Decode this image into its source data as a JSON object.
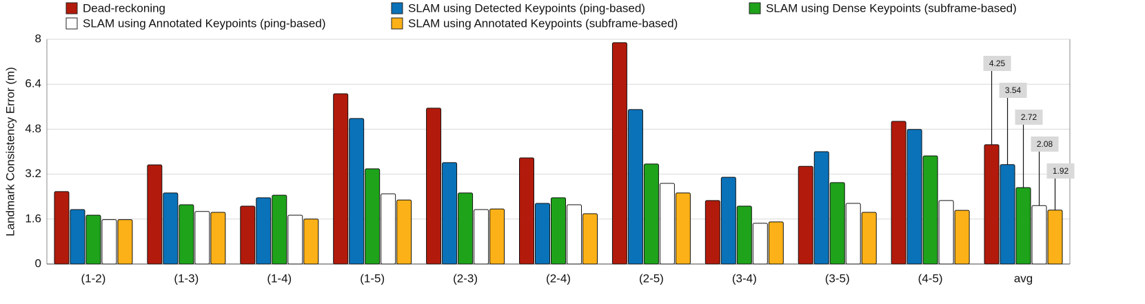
{
  "chart_data": {
    "type": "bar",
    "y_label": "Landmark Consistency Error (m)",
    "categories": [
      "(1-2)",
      "(1-3)",
      "(1-4)",
      "(1-5)",
      "(2-3)",
      "(2-4)",
      "(2-5)",
      "(3-4)",
      "(3-5)",
      "(4-5)",
      "avg"
    ],
    "series": [
      {
        "name": "Dead-reckoning",
        "color": "#b21a0b",
        "values": [
          2.58,
          3.53,
          2.06,
          6.06,
          5.55,
          3.78,
          7.88,
          2.26,
          3.48,
          5.08,
          4.25
        ]
      },
      {
        "name": "SLAM using Detected Keypoints (ping-based)",
        "color": "#0a72b9",
        "values": [
          1.94,
          2.53,
          2.36,
          5.18,
          3.61,
          2.16,
          5.5,
          3.09,
          4.0,
          4.79,
          3.54
        ]
      },
      {
        "name": "SLAM using Dense Keypoints (subframe-based)",
        "color": "#1ea31a",
        "values": [
          1.74,
          2.11,
          2.45,
          3.39,
          2.53,
          2.36,
          3.56,
          2.06,
          2.9,
          3.85,
          2.72
        ]
      },
      {
        "name": "SLAM using Annotated Keypoints (ping-based)",
        "color": "#ffffff",
        "values": [
          1.58,
          1.87,
          1.74,
          2.5,
          1.94,
          2.11,
          2.87,
          1.45,
          2.16,
          2.26,
          2.08
        ]
      },
      {
        "name": "SLAM using Annotated Keypoints (subframe-based)",
        "color": "#fbb117",
        "values": [
          1.58,
          1.84,
          1.6,
          2.28,
          1.96,
          1.79,
          2.53,
          1.5,
          1.84,
          1.91,
          1.92
        ]
      }
    ],
    "ylim": [
      0,
      8
    ],
    "yticks": [
      0,
      1.6,
      3.2,
      4.8,
      6.4,
      8
    ],
    "grid": true
  }
}
